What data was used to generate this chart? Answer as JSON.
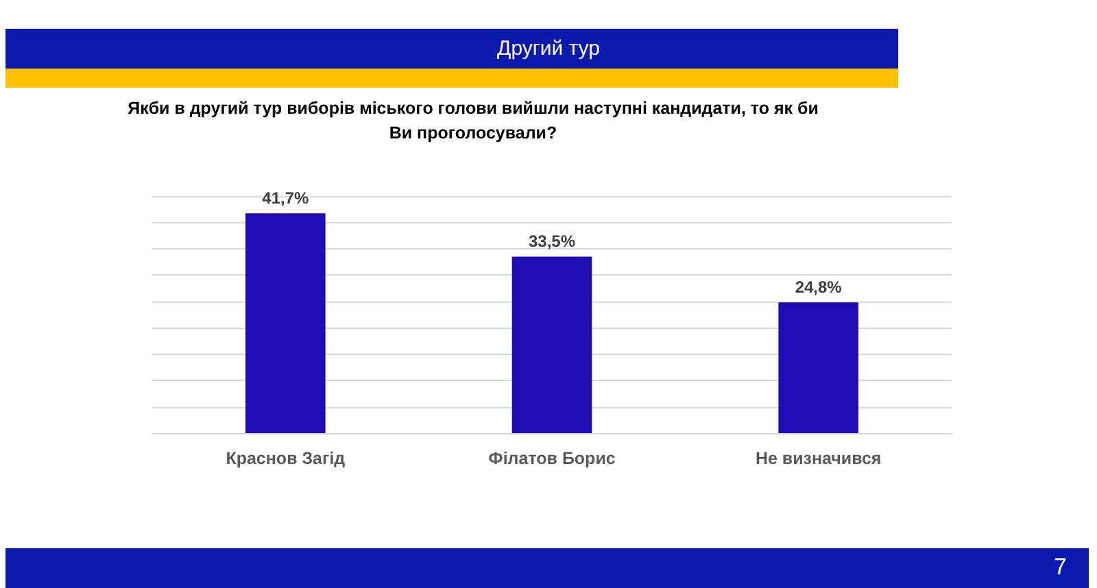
{
  "chart_data": {
    "type": "bar",
    "title": "Другий тур",
    "subtitle": "Якби в другий тур виборів міського голови вийшли наступні кандидати, то як би Ви проголосували?",
    "categories": [
      "Краснов Загід",
      "Філатов Борис",
      "Не визначився"
    ],
    "values": [
      41.7,
      33.5,
      24.8
    ],
    "color": "#1f0cb5",
    "value_labels": [
      "41,7%",
      "33,5%",
      "24,8%"
    ],
    "ylim": [
      0,
      45
    ],
    "yticks": [
      {
        "value": 0,
        "label": null
      },
      {
        "value": 5,
        "label": null
      },
      {
        "value": 10,
        "label": null
      },
      {
        "value": 15,
        "label": null
      },
      {
        "value": 20,
        "label": null
      },
      {
        "value": 25,
        "label": null
      },
      {
        "value": 30,
        "label": null
      },
      {
        "value": 35,
        "label": null
      },
      {
        "value": 40,
        "label": null
      },
      {
        "value": 45,
        "label": null
      }
    ],
    "tick_labels": "x",
    "grid": "y",
    "annotations": [
      "7"
    ]
  }
}
